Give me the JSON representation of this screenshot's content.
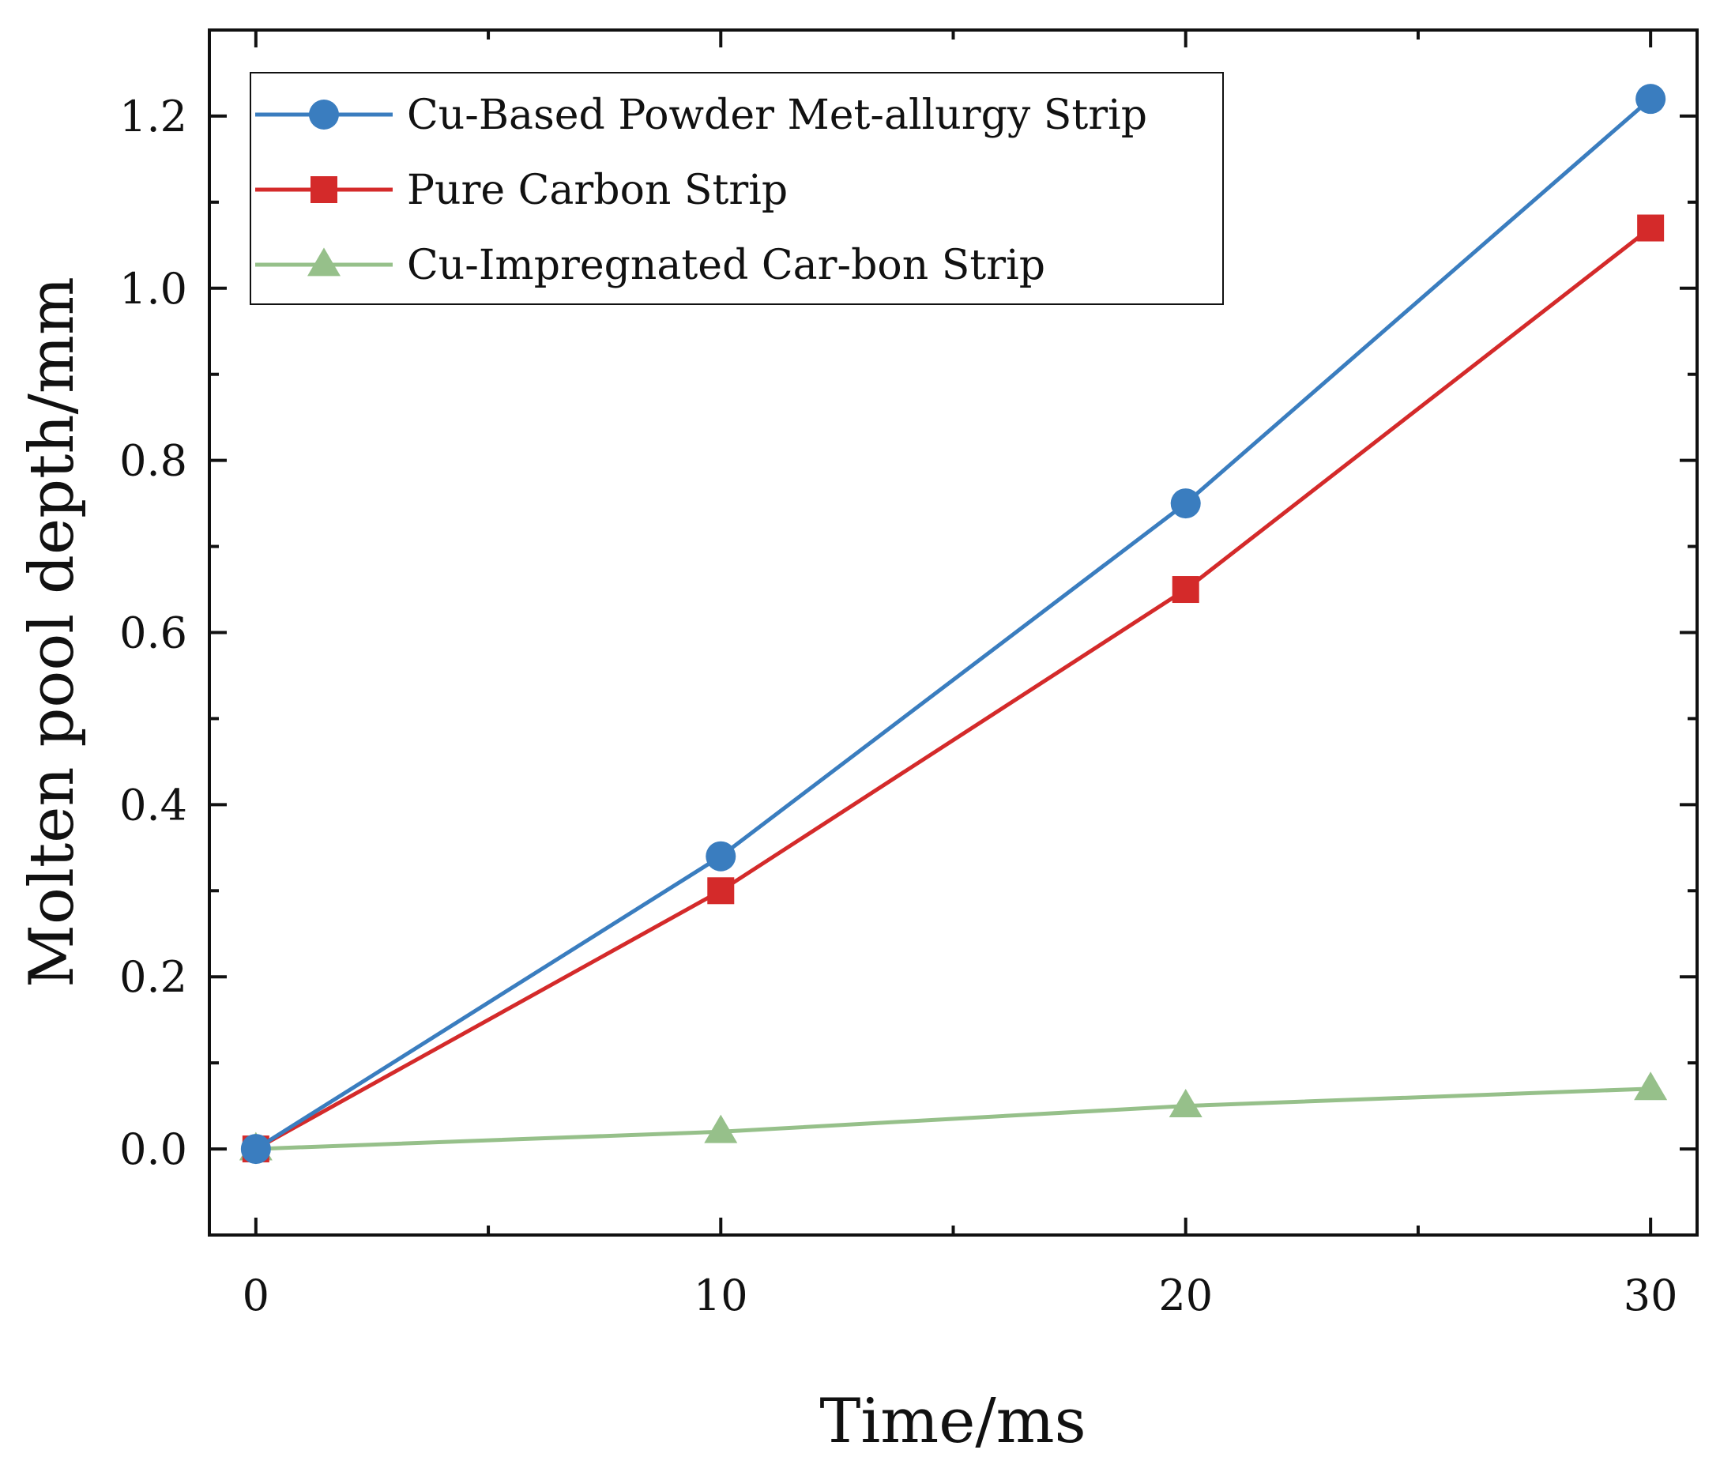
{
  "chart_data": {
    "type": "line",
    "xlabel": "Time/ms",
    "ylabel": "Molten pool depth/mm",
    "xlim": [
      -1,
      31
    ],
    "ylim": [
      -0.1,
      1.3
    ],
    "x_ticks": [
      0,
      10,
      20,
      30
    ],
    "x_tick_labels": [
      "0",
      "10",
      "20",
      "30"
    ],
    "x_minor_ticks": [
      5,
      15,
      25
    ],
    "y_ticks": [
      0.0,
      0.2,
      0.4,
      0.6,
      0.8,
      1.0,
      1.2
    ],
    "y_tick_labels": [
      "0.0",
      "0.2",
      "0.4",
      "0.6",
      "0.8",
      "1.0",
      "1.2"
    ],
    "y_minor_ticks": [
      0.1,
      0.3,
      0.5,
      0.7,
      0.9,
      1.1
    ],
    "grid": false,
    "legend_position": "top-left",
    "x": [
      0,
      10,
      20,
      30
    ],
    "series": [
      {
        "name": "Cu-Based Powder Met-allurgy Strip",
        "marker": "circle",
        "color": "#3a7dbf",
        "values": [
          0.0,
          0.34,
          0.75,
          1.22
        ]
      },
      {
        "name": "Pure Carbon Strip",
        "marker": "square",
        "color": "#d42a2a",
        "values": [
          0.0,
          0.3,
          0.65,
          1.07
        ]
      },
      {
        "name": "Cu-Impregnated Car-bon Strip",
        "marker": "triangle",
        "color": "#96c08a",
        "values": [
          0.0,
          0.02,
          0.05,
          0.07
        ]
      }
    ]
  }
}
